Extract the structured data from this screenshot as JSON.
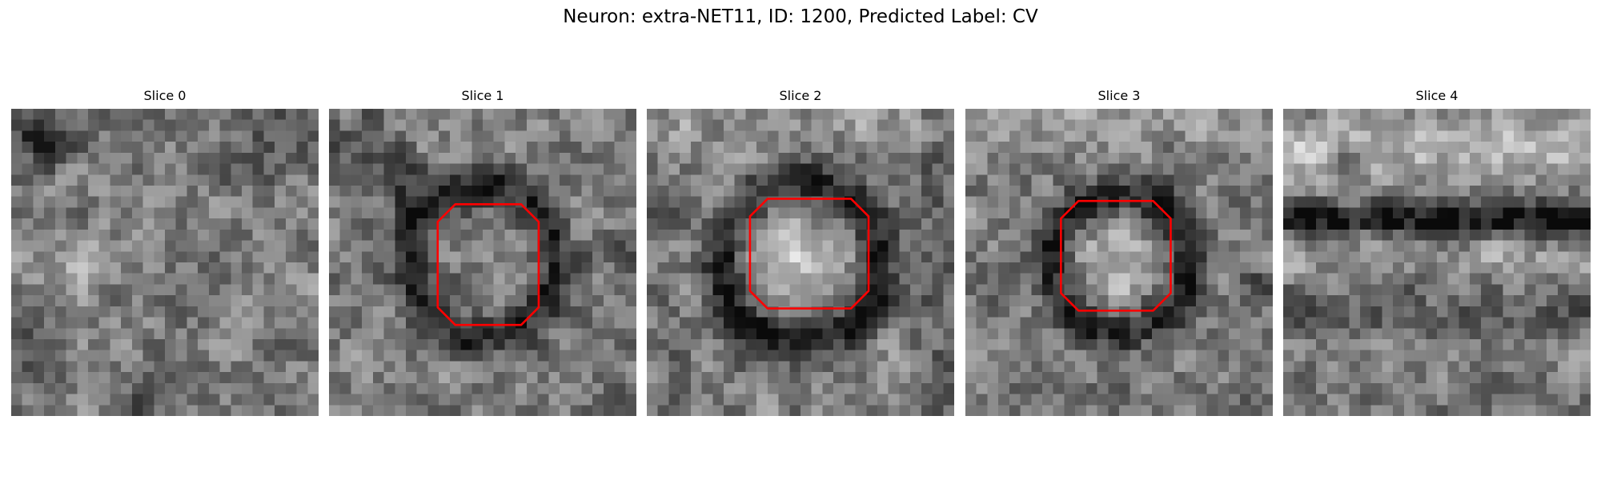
{
  "figure": {
    "title": "Neuron: extra-NET11, ID: 1200, Predicted Label: CV"
  },
  "colormap": "gray",
  "outline_color": "#ff0000",
  "slices": [
    {
      "title": "Slice 0",
      "has_outline": false
    },
    {
      "title": "Slice 1",
      "has_outline": true
    },
    {
      "title": "Slice 2",
      "has_outline": true
    },
    {
      "title": "Slice 3",
      "has_outline": true
    },
    {
      "title": "Slice 4",
      "has_outline": false
    }
  ]
}
